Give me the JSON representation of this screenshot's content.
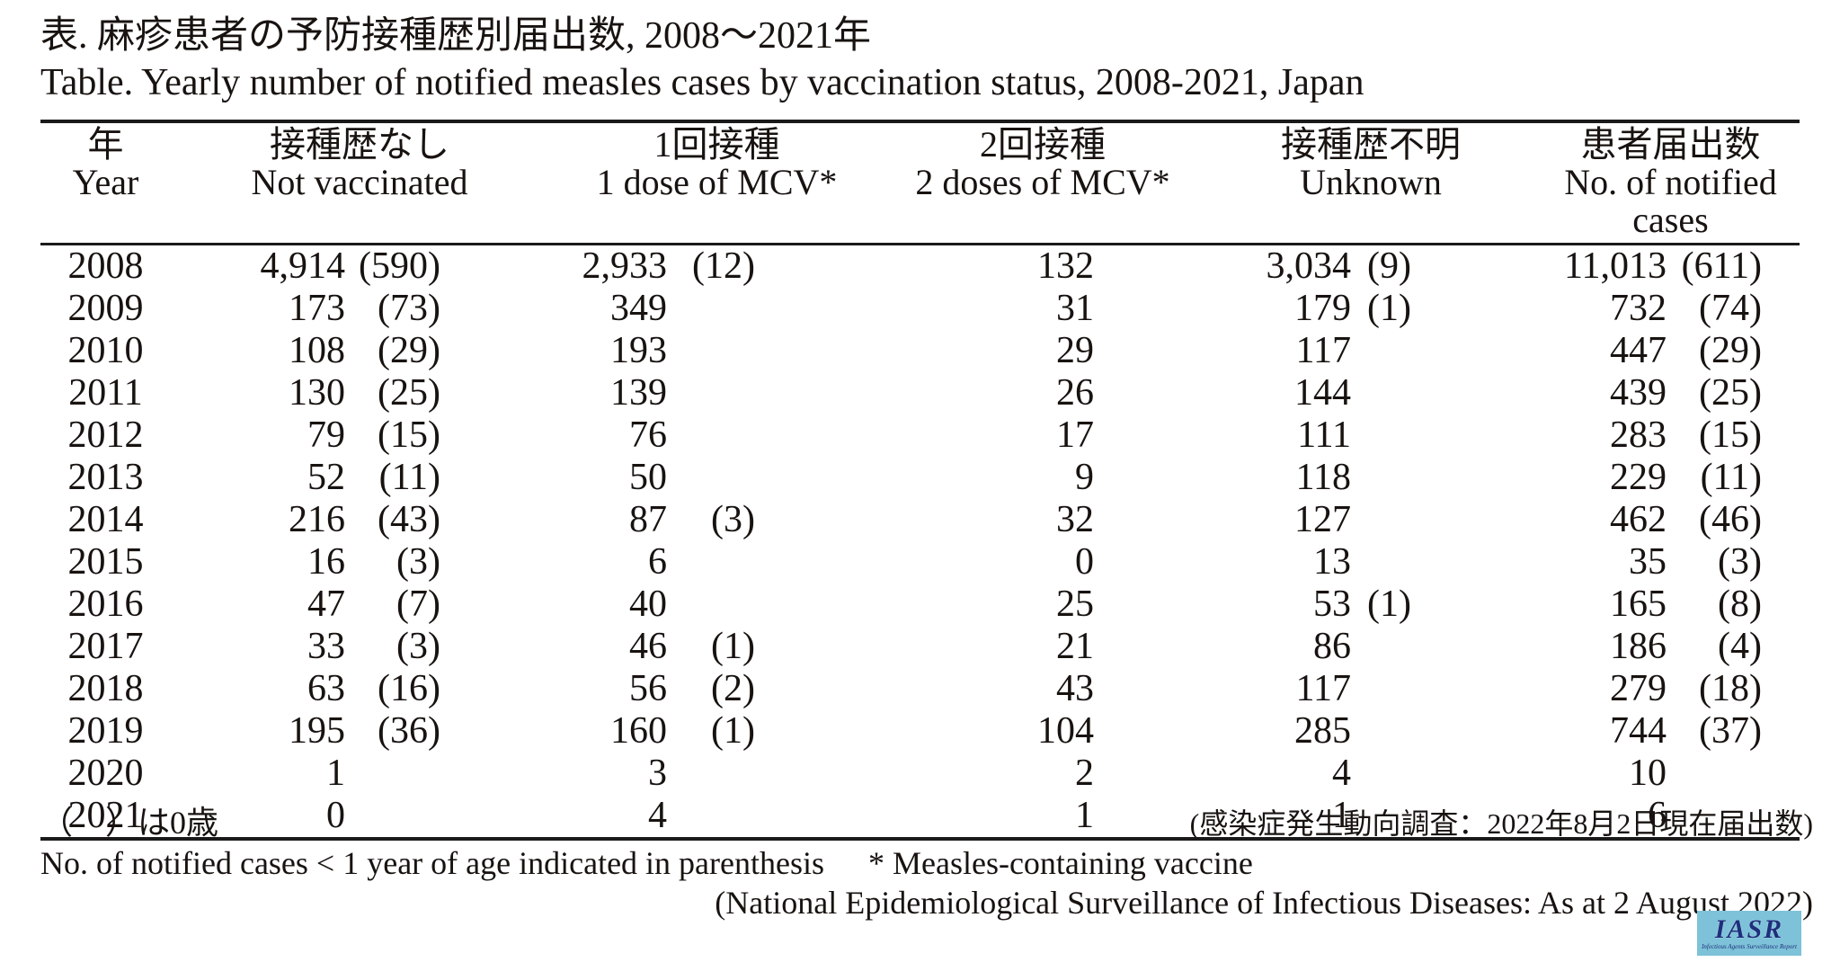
{
  "title": {
    "ja": "表. 麻疹患者の予防接種歴別届出数, 2008～2021年",
    "en": "Table. Yearly number of notified measles cases by vaccination status, 2008-2021, Japan"
  },
  "table": {
    "columns": [
      {
        "ja": "年",
        "en": "Year"
      },
      {
        "ja": "接種歴なし",
        "en": "Not vaccinated"
      },
      {
        "ja": "1回接種",
        "en": "1 dose of MCV*"
      },
      {
        "ja": "2回接種",
        "en": "2 doses of MCV*"
      },
      {
        "ja": "接種歴不明",
        "en": "Unknown"
      },
      {
        "ja": "患者届出数",
        "en": "No. of notified cases"
      }
    ],
    "rows": [
      {
        "year": "2008",
        "not_vaccinated": "4,914",
        "not_vaccinated_infant": "(590)",
        "one_dose": "2,933",
        "one_dose_infant": "(12)",
        "two_doses": "132",
        "two_doses_infant": "",
        "unknown": "3,034",
        "unknown_infant": "(9)",
        "notified": "11,013",
        "notified_infant": "(611)"
      },
      {
        "year": "2009",
        "not_vaccinated": "173",
        "not_vaccinated_infant": "(73)",
        "one_dose": "349",
        "one_dose_infant": "",
        "two_doses": "31",
        "two_doses_infant": "",
        "unknown": "179",
        "unknown_infant": "(1)",
        "notified": "732",
        "notified_infant": "(74)"
      },
      {
        "year": "2010",
        "not_vaccinated": "108",
        "not_vaccinated_infant": "(29)",
        "one_dose": "193",
        "one_dose_infant": "",
        "two_doses": "29",
        "two_doses_infant": "",
        "unknown": "117",
        "unknown_infant": "",
        "notified": "447",
        "notified_infant": "(29)"
      },
      {
        "year": "2011",
        "not_vaccinated": "130",
        "not_vaccinated_infant": "(25)",
        "one_dose": "139",
        "one_dose_infant": "",
        "two_doses": "26",
        "two_doses_infant": "",
        "unknown": "144",
        "unknown_infant": "",
        "notified": "439",
        "notified_infant": "(25)"
      },
      {
        "year": "2012",
        "not_vaccinated": "79",
        "not_vaccinated_infant": "(15)",
        "one_dose": "76",
        "one_dose_infant": "",
        "two_doses": "17",
        "two_doses_infant": "",
        "unknown": "111",
        "unknown_infant": "",
        "notified": "283",
        "notified_infant": "(15)"
      },
      {
        "year": "2013",
        "not_vaccinated": "52",
        "not_vaccinated_infant": "(11)",
        "one_dose": "50",
        "one_dose_infant": "",
        "two_doses": "9",
        "two_doses_infant": "",
        "unknown": "118",
        "unknown_infant": "",
        "notified": "229",
        "notified_infant": "(11)"
      },
      {
        "year": "2014",
        "not_vaccinated": "216",
        "not_vaccinated_infant": "(43)",
        "one_dose": "87",
        "one_dose_infant": "(3)",
        "two_doses": "32",
        "two_doses_infant": "",
        "unknown": "127",
        "unknown_infant": "",
        "notified": "462",
        "notified_infant": "(46)"
      },
      {
        "year": "2015",
        "not_vaccinated": "16",
        "not_vaccinated_infant": "(3)",
        "one_dose": "6",
        "one_dose_infant": "",
        "two_doses": "0",
        "two_doses_infant": "",
        "unknown": "13",
        "unknown_infant": "",
        "notified": "35",
        "notified_infant": "(3)"
      },
      {
        "year": "2016",
        "not_vaccinated": "47",
        "not_vaccinated_infant": "(7)",
        "one_dose": "40",
        "one_dose_infant": "",
        "two_doses": "25",
        "two_doses_infant": "",
        "unknown": "53",
        "unknown_infant": "(1)",
        "notified": "165",
        "notified_infant": "(8)"
      },
      {
        "year": "2017",
        "not_vaccinated": "33",
        "not_vaccinated_infant": "(3)",
        "one_dose": "46",
        "one_dose_infant": "(1)",
        "two_doses": "21",
        "two_doses_infant": "",
        "unknown": "86",
        "unknown_infant": "",
        "notified": "186",
        "notified_infant": "(4)"
      },
      {
        "year": "2018",
        "not_vaccinated": "63",
        "not_vaccinated_infant": "(16)",
        "one_dose": "56",
        "one_dose_infant": "(2)",
        "two_doses": "43",
        "two_doses_infant": "",
        "unknown": "117",
        "unknown_infant": "",
        "notified": "279",
        "notified_infant": "(18)"
      },
      {
        "year": "2019",
        "not_vaccinated": "195",
        "not_vaccinated_infant": "(36)",
        "one_dose": "160",
        "one_dose_infant": "(1)",
        "two_doses": "104",
        "two_doses_infant": "",
        "unknown": "285",
        "unknown_infant": "",
        "notified": "744",
        "notified_infant": "(37)"
      },
      {
        "year": "2020",
        "not_vaccinated": "1",
        "not_vaccinated_infant": "",
        "one_dose": "3",
        "one_dose_infant": "",
        "two_doses": "2",
        "two_doses_infant": "",
        "unknown": "4",
        "unknown_infant": "",
        "notified": "10",
        "notified_infant": ""
      },
      {
        "year": "2021",
        "not_vaccinated": "0",
        "not_vaccinated_infant": "",
        "one_dose": "4",
        "one_dose_infant": "",
        "two_doses": "1",
        "two_doses_infant": "",
        "unknown": "1",
        "unknown_infant": "",
        "notified": "6",
        "notified_infant": ""
      }
    ]
  },
  "footnotes": {
    "paren_note_ja": "（　）は0歳",
    "source_note_ja": "(感染症発生動向調査：2022年8月2日現在届出数)",
    "paren_note_en": "No. of notified cases < 1 year of age  indicated in parenthesis",
    "mcv_note": "* Measles-containing vaccine",
    "source_note_en": "(National Epidemiological Surveillance of Infectious Diseases: As at 2 August 2022)"
  },
  "logo": {
    "text": "IASR",
    "subtext": "Infectious Agents Surveillance Report",
    "bg_color": "#7dc2d8",
    "text_color": "#1e2f7d"
  }
}
